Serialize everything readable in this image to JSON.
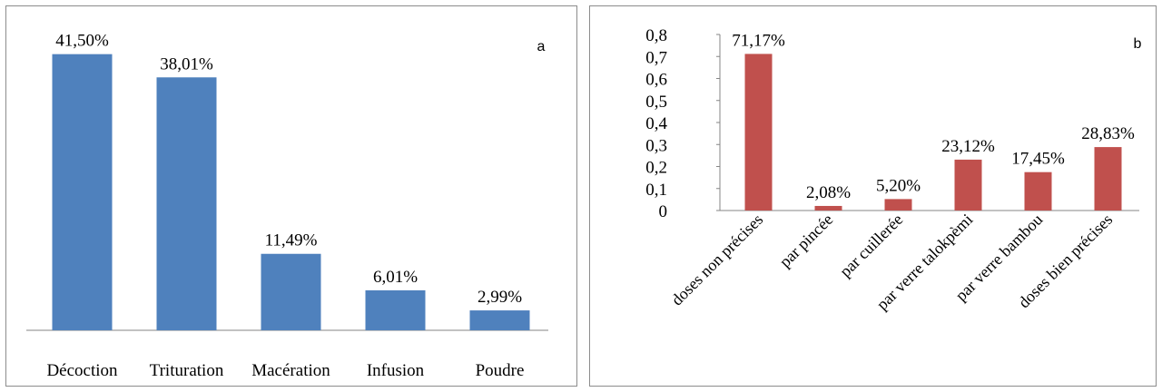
{
  "chart_data": [
    {
      "type": "bar",
      "panel_label": "a",
      "categories": [
        "Décoction",
        "Trituration",
        "Macération",
        "Infusion",
        "Poudre"
      ],
      "values": [
        41.5,
        38.01,
        11.49,
        6.01,
        2.99
      ],
      "data_labels": [
        "41,50%",
        "38,01%",
        "11,49%",
        "6,01%",
        "2,99%"
      ],
      "ylim": [
        0,
        45
      ],
      "y_axis_visible": false,
      "grid": false,
      "legend": "none",
      "bar_color": "#4F81BD"
    },
    {
      "type": "bar",
      "panel_label": "b",
      "categories": [
        "doses non précises",
        "par pincée",
        "par cuillerée",
        "par verre talokpèmi",
        "par verre bambou",
        "doses bien précises"
      ],
      "values": [
        0.7117,
        0.0208,
        0.052,
        0.2312,
        0.1745,
        0.2883
      ],
      "data_labels": [
        "71,17%",
        "2,08%",
        "5,20%",
        "23,12%",
        "17,45%",
        "28,83%"
      ],
      "yticks": [
        "0",
        "0,1",
        "0,2",
        "0,3",
        "0,4",
        "0,5",
        "0,6",
        "0,7",
        "0,8"
      ],
      "ylim": [
        0,
        0.8
      ],
      "grid": false,
      "legend": "none",
      "bar_color": "#C0504D"
    }
  ]
}
